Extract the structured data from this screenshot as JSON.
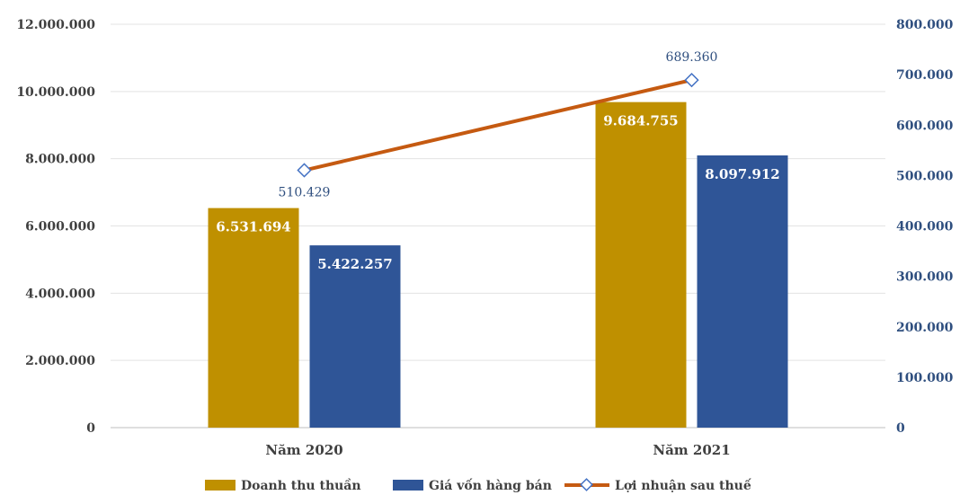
{
  "chart_data": {
    "type": "bar",
    "categories": [
      "Năm 2020",
      "Năm 2021"
    ],
    "series": [
      {
        "name": "Doanh thu thuần",
        "type": "bar",
        "axis": "left",
        "color": "#BF9000",
        "values": [
          6531694,
          9684755
        ],
        "labels": [
          "6.531.694",
          "9.684.755"
        ]
      },
      {
        "name": "Giá vốn hàng bán",
        "type": "bar",
        "axis": "left",
        "color": "#2F5597",
        "values": [
          5422257,
          8097912
        ],
        "labels": [
          "5.422.257",
          "8.097.912"
        ]
      },
      {
        "name": "Lợi nhuận sau thuế",
        "type": "line",
        "axis": "right",
        "color": "#C55A11",
        "values": [
          510429,
          689360
        ],
        "labels": [
          "510.429",
          "689.360"
        ]
      }
    ],
    "y_left": {
      "range": [
        0,
        12000000
      ],
      "ticks": [
        0,
        2000000,
        4000000,
        6000000,
        8000000,
        10000000,
        12000000
      ],
      "tick_labels": [
        "0",
        "2.000.000",
        "4.000.000",
        "6.000.000",
        "8.000.000",
        "10.000.000",
        "12.000.000"
      ]
    },
    "y_right": {
      "range": [
        0,
        800000
      ],
      "ticks": [
        0,
        100000,
        200000,
        300000,
        400000,
        500000,
        600000,
        700000,
        800000
      ],
      "tick_labels": [
        "0",
        "100.000",
        "200.000",
        "300.000",
        "400.000",
        "500.000",
        "600.000",
        "700.000",
        "800.000"
      ]
    },
    "grid": true,
    "legend": "bottom",
    "title": "",
    "xlabel": "",
    "ylabel": ""
  }
}
